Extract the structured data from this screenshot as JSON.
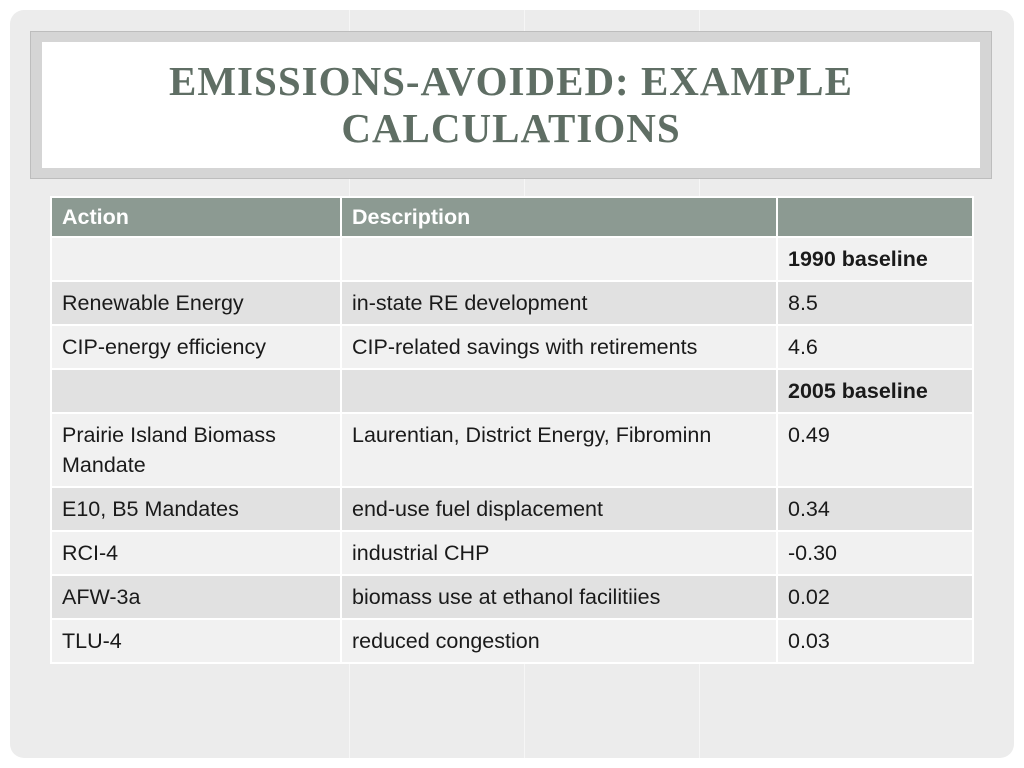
{
  "slide": {
    "title": "Emissions-avoided: Example Calculations"
  },
  "table": {
    "headers": [
      "Action",
      "Description",
      ""
    ],
    "rows": [
      {
        "action": "",
        "description": "",
        "value": "1990 baseline",
        "is_baseline": true
      },
      {
        "action": "Renewable Energy",
        "description": "in-state RE development",
        "value": "8.5",
        "is_baseline": false
      },
      {
        "action": "CIP-energy efficiency",
        "description": "CIP-related savings with retirements",
        "value": "4.6",
        "is_baseline": false
      },
      {
        "action": "",
        "description": "",
        "value": "2005 baseline",
        "is_baseline": true
      },
      {
        "action": "Prairie Island Biomass Mandate",
        "description": "Laurentian, District Energy, Fibrominn",
        "value": "0.49",
        "is_baseline": false
      },
      {
        "action": "E10, B5 Mandates",
        "description": "end-use fuel displacement",
        "value": "0.34",
        "is_baseline": false
      },
      {
        "action": "RCI-4",
        "description": "industrial CHP",
        "value": "-0.30",
        "is_baseline": false
      },
      {
        "action": "AFW-3a",
        "description": "biomass use at ethanol facilitiies",
        "value": "0.02",
        "is_baseline": false
      },
      {
        "action": "TLU-4",
        "description": "reduced congestion",
        "value": "0.03",
        "is_baseline": false
      }
    ]
  },
  "colors": {
    "title_text": "#5f6e64",
    "header_background": "#8c9a92",
    "row_light": "#f1f1f1",
    "row_dark": "#e1e1e1",
    "slide_background": "#ececec"
  }
}
